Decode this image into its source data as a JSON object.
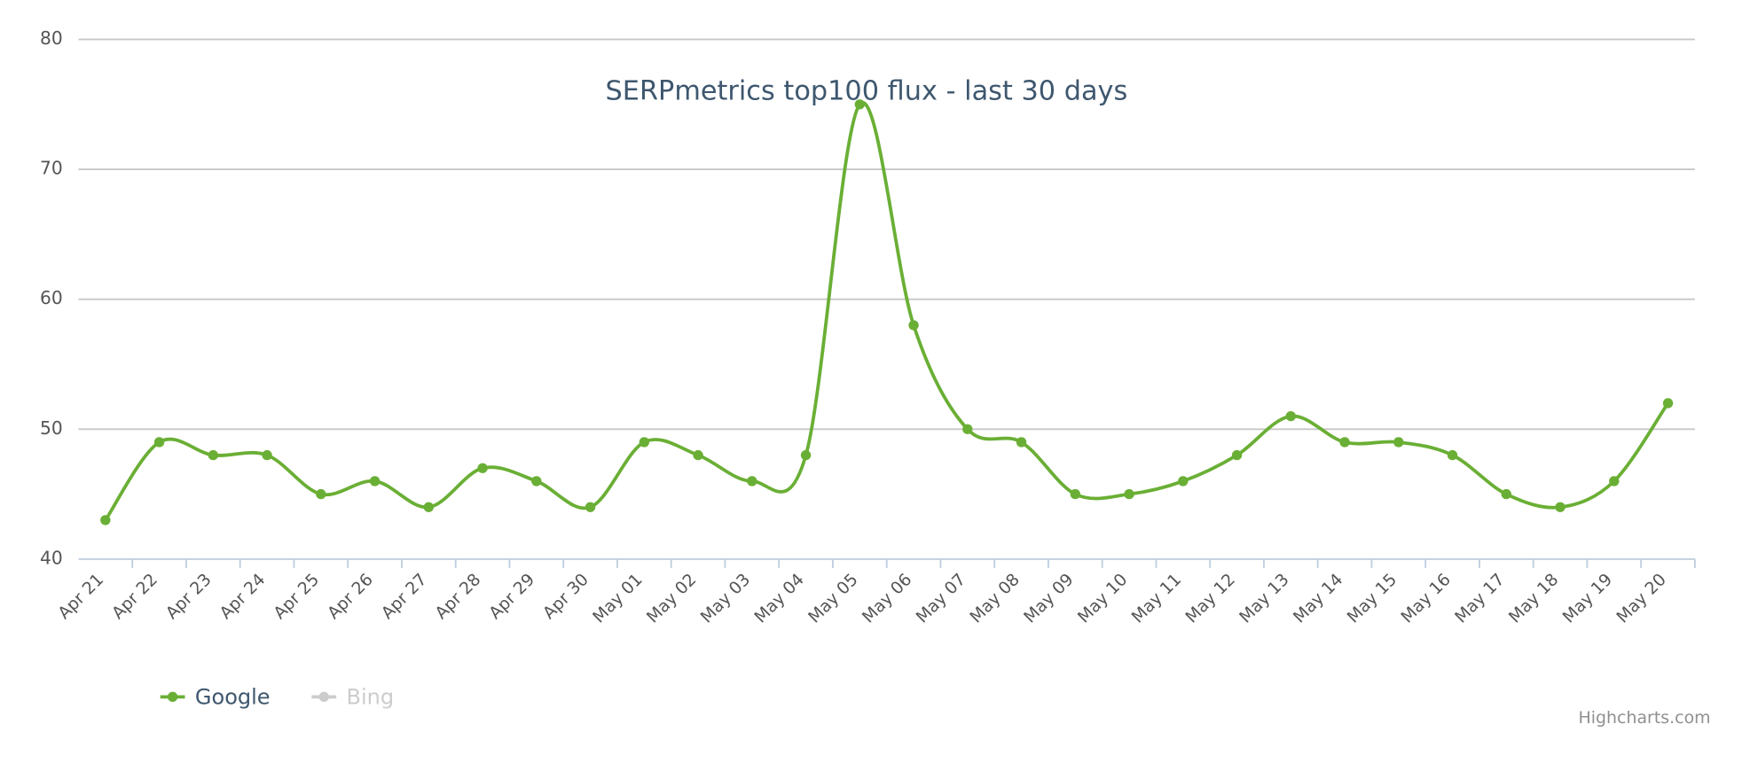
{
  "chart_data": {
    "type": "line",
    "title": "SERPmetrics top100 flux - last 30 days",
    "categories": [
      "Apr 21",
      "Apr 22",
      "Apr 23",
      "Apr 24",
      "Apr 25",
      "Apr 26",
      "Apr 27",
      "Apr 28",
      "Apr 29",
      "Apr 30",
      "May 01",
      "May 02",
      "May 03",
      "May 04",
      "May 05",
      "May 06",
      "May 07",
      "May 08",
      "May 09",
      "May 10",
      "May 11",
      "May 12",
      "May 13",
      "May 14",
      "May 15",
      "May 16",
      "May 17",
      "May 18",
      "May 19",
      "May 20"
    ],
    "series": [
      {
        "name": "Google",
        "color": "#6aaf35",
        "visible": true,
        "values": [
          43,
          49,
          48,
          48,
          45,
          46,
          44,
          47,
          46,
          44,
          49,
          48,
          46,
          48,
          75,
          58,
          50,
          49,
          45,
          45,
          46,
          48,
          51,
          49,
          49,
          48,
          45,
          44,
          46,
          52
        ]
      },
      {
        "name": "Bing",
        "color": "#cccccc",
        "visible": false
      }
    ],
    "ylim": [
      40,
      80
    ],
    "yticks": [
      40,
      50,
      60,
      70,
      80
    ],
    "grid": true,
    "legend": "bottom-left",
    "credits": "Highcharts.com"
  }
}
